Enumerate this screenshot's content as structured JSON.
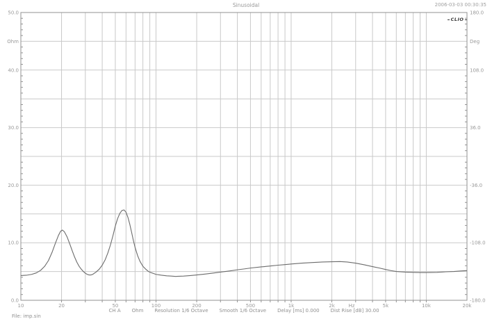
{
  "header": {
    "title": "Sinusoidal",
    "datetime": "2006-03-03 00:30:35",
    "logo": "CLIO"
  },
  "footer": {
    "file_label": "File: imp.sin",
    "settings_segments": [
      "CH A",
      "Ohm",
      "Resolution 1/6 Octave",
      "Smooth 1/6 Octave",
      "Delay [ms] 0.000",
      "Dist Rise [dB] 30.00"
    ]
  },
  "colors": {
    "gridline": "#c9c9c9",
    "frame": "#909090",
    "curve": "#6b6b6b",
    "label_text": "#999999"
  },
  "chart_data": {
    "type": "line",
    "title": "Sinusoidal",
    "xlabel": "Hz",
    "ylabel_left": "Ohm",
    "ylabel_right": "Deg",
    "x_axis": {
      "scale": "log",
      "min": 10,
      "max": 20000,
      "unit": "Hz",
      "gridline_freqs": [
        20,
        30,
        40,
        50,
        60,
        70,
        80,
        90,
        100,
        200,
        300,
        400,
        500,
        600,
        700,
        800,
        900,
        1000,
        2000,
        3000,
        4000,
        5000,
        6000,
        7000,
        8000,
        9000,
        10000
      ],
      "tick_labels": [
        {
          "f": 10,
          "t": "10"
        },
        {
          "f": 20,
          "t": "20"
        },
        {
          "f": 50,
          "t": "50"
        },
        {
          "f": 100,
          "t": "100"
        },
        {
          "f": 200,
          "t": "200"
        },
        {
          "f": 500,
          "t": "500"
        },
        {
          "f": 1000,
          "t": "1k"
        },
        {
          "f": 2000,
          "t": "2k"
        },
        {
          "f": 2800,
          "t": "Hz"
        },
        {
          "f": 5000,
          "t": "5k"
        },
        {
          "f": 10000,
          "t": "10k"
        },
        {
          "f": 20000,
          "t": "20k"
        }
      ]
    },
    "y_left": {
      "unit": "Ohm",
      "min": 0,
      "max": 50,
      "gridline_values": [
        5,
        10,
        15,
        20,
        25,
        30,
        35,
        40,
        45
      ],
      "minor_tick_step": 1,
      "labels": [
        {
          "v": 50,
          "t": "50.0"
        },
        {
          "v": 45,
          "t": "Ohm"
        },
        {
          "v": 40,
          "t": "40.0"
        },
        {
          "v": 30,
          "t": "30.0"
        },
        {
          "v": 20,
          "t": "20.0"
        },
        {
          "v": 10,
          "t": "10.0"
        },
        {
          "v": 0,
          "t": "0.0"
        }
      ]
    },
    "y_right": {
      "unit": "Deg",
      "min": -180,
      "max": 180,
      "labels": [
        {
          "v": 180,
          "t": "180.0"
        },
        {
          "v": 144,
          "t": "Deg"
        },
        {
          "v": 108,
          "t": "108.0"
        },
        {
          "v": 36,
          "t": "36.0"
        },
        {
          "v": -36,
          "t": "-36.0"
        },
        {
          "v": -108,
          "t": "-108.0"
        },
        {
          "v": -180,
          "t": "-180.0"
        }
      ]
    },
    "legend": "none",
    "grid": true,
    "series": [
      {
        "name": "CH A impedance magnitude",
        "unit_x": "Hz",
        "unit_y": "Ohm",
        "points": [
          [
            10,
            4.3
          ],
          [
            11,
            4.35
          ],
          [
            12,
            4.5
          ],
          [
            13,
            4.75
          ],
          [
            14,
            5.2
          ],
          [
            15,
            5.9
          ],
          [
            16,
            6.9
          ],
          [
            17,
            8.3
          ],
          [
            18,
            9.9
          ],
          [
            19,
            11.3
          ],
          [
            19.7,
            12.0
          ],
          [
            20.3,
            12.2
          ],
          [
            21,
            11.9
          ],
          [
            22,
            11.0
          ],
          [
            23,
            9.8
          ],
          [
            24,
            8.6
          ],
          [
            25,
            7.5
          ],
          [
            26,
            6.6
          ],
          [
            27,
            5.9
          ],
          [
            28,
            5.4
          ],
          [
            29,
            5.0
          ],
          [
            30,
            4.7
          ],
          [
            31,
            4.5
          ],
          [
            32,
            4.4
          ],
          [
            33,
            4.4
          ],
          [
            34,
            4.5
          ],
          [
            35,
            4.7
          ],
          [
            36,
            4.9
          ],
          [
            38,
            5.4
          ],
          [
            40,
            6.1
          ],
          [
            42,
            7.0
          ],
          [
            44,
            8.2
          ],
          [
            46,
            9.6
          ],
          [
            48,
            11.2
          ],
          [
            50,
            12.9
          ],
          [
            52,
            14.2
          ],
          [
            54,
            15.1
          ],
          [
            56,
            15.6
          ],
          [
            58,
            15.7
          ],
          [
            60,
            15.3
          ],
          [
            62,
            14.4
          ],
          [
            64,
            13.2
          ],
          [
            66,
            11.8
          ],
          [
            68,
            10.4
          ],
          [
            70,
            9.2
          ],
          [
            73,
            7.8
          ],
          [
            76,
            6.8
          ],
          [
            80,
            5.9
          ],
          [
            84,
            5.4
          ],
          [
            88,
            5.0
          ],
          [
            92,
            4.8
          ],
          [
            96,
            4.65
          ],
          [
            100,
            4.5
          ],
          [
            110,
            4.35
          ],
          [
            120,
            4.25
          ],
          [
            130,
            4.2
          ],
          [
            140,
            4.15
          ],
          [
            160,
            4.2
          ],
          [
            180,
            4.3
          ],
          [
            200,
            4.4
          ],
          [
            230,
            4.55
          ],
          [
            260,
            4.7
          ],
          [
            300,
            4.9
          ],
          [
            350,
            5.1
          ],
          [
            400,
            5.3
          ],
          [
            450,
            5.45
          ],
          [
            500,
            5.6
          ],
          [
            600,
            5.8
          ],
          [
            700,
            5.95
          ],
          [
            800,
            6.1
          ],
          [
            900,
            6.2
          ],
          [
            1000,
            6.3
          ],
          [
            1200,
            6.45
          ],
          [
            1400,
            6.55
          ],
          [
            1700,
            6.65
          ],
          [
            2000,
            6.7
          ],
          [
            2300,
            6.72
          ],
          [
            2600,
            6.65
          ],
          [
            3000,
            6.45
          ],
          [
            3500,
            6.15
          ],
          [
            4000,
            5.85
          ],
          [
            4500,
            5.6
          ],
          [
            5000,
            5.35
          ],
          [
            5500,
            5.15
          ],
          [
            6000,
            5.0
          ],
          [
            7000,
            4.9
          ],
          [
            8000,
            4.85
          ],
          [
            9000,
            4.82
          ],
          [
            10000,
            4.82
          ],
          [
            12000,
            4.85
          ],
          [
            14000,
            4.95
          ],
          [
            16000,
            5.0
          ],
          [
            18000,
            5.1
          ],
          [
            20000,
            5.15
          ]
        ]
      }
    ]
  }
}
